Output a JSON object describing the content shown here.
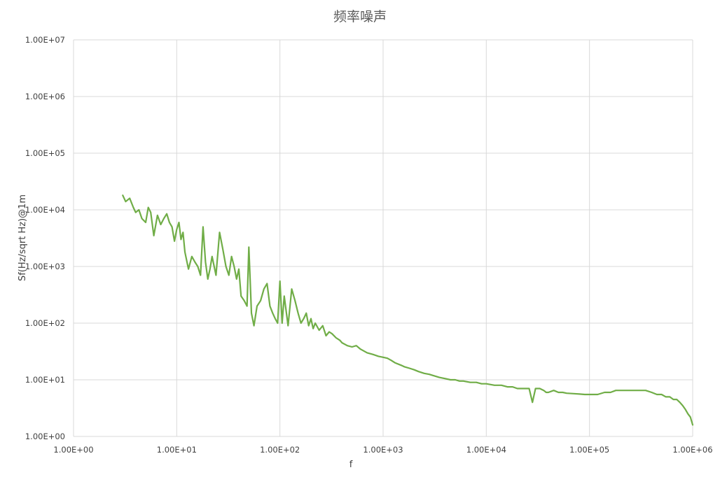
{
  "chart_data": {
    "type": "line",
    "title": "频率噪声",
    "xlabel": "f",
    "ylabel": "Sf(Hz/sqrt Hz)@1m",
    "x_scale": "log",
    "y_scale": "log",
    "xlim": [
      1,
      1000000
    ],
    "ylim": [
      1,
      10000000
    ],
    "x_ticks": [
      {
        "value": 1,
        "label": "1.00E+00"
      },
      {
        "value": 10,
        "label": "1.00E+01"
      },
      {
        "value": 100,
        "label": "1.00E+02"
      },
      {
        "value": 1000,
        "label": "1.00E+03"
      },
      {
        "value": 10000,
        "label": "1.00E+04"
      },
      {
        "value": 100000,
        "label": "1.00E+05"
      },
      {
        "value": 1000000,
        "label": "1.00E+06"
      }
    ],
    "y_ticks": [
      {
        "value": 1,
        "label": "1.00E+00"
      },
      {
        "value": 10,
        "label": "1.00E+01"
      },
      {
        "value": 100,
        "label": "1.00E+02"
      },
      {
        "value": 1000,
        "label": "1.00E+03"
      },
      {
        "value": 10000,
        "label": "1.00E+04"
      },
      {
        "value": 100000,
        "label": "1.00E+05"
      },
      {
        "value": 1000000,
        "label": "1.00E+06"
      },
      {
        "value": 10000000,
        "label": "1.00E+07"
      }
    ],
    "grid": true,
    "legend": "none",
    "series": [
      {
        "color": "#70ad47",
        "x": [
          3,
          3.2,
          3.5,
          3.8,
          4,
          4.3,
          4.6,
          5,
          5.3,
          5.6,
          6,
          6.5,
          7,
          7.5,
          8,
          8.5,
          9,
          9.5,
          10,
          10.5,
          11,
          11.5,
          12,
          13,
          14,
          15,
          16,
          17,
          18,
          19,
          20,
          21,
          22,
          24,
          26,
          28,
          30,
          32,
          34,
          36,
          38,
          40,
          42,
          45,
          48,
          50,
          53,
          56,
          60,
          65,
          70,
          75,
          80,
          85,
          90,
          95,
          100,
          105,
          110,
          120,
          130,
          140,
          150,
          160,
          170,
          180,
          190,
          200,
          210,
          220,
          240,
          260,
          280,
          300,
          320,
          350,
          380,
          400,
          450,
          500,
          550,
          600,
          700,
          800,
          900,
          1000,
          1100,
          1200,
          1300,
          1500,
          1600,
          1800,
          2000,
          2200,
          2500,
          2800,
          3000,
          3500,
          4000,
          4500,
          5000,
          5500,
          6000,
          7000,
          8000,
          9000,
          10000,
          12000,
          14000,
          16000,
          18000,
          20000,
          23000,
          26000,
          28000,
          30000,
          33000,
          36000,
          38000,
          40000,
          45000,
          50000,
          55000,
          60000,
          70000,
          80000,
          90000,
          100000,
          120000,
          140000,
          160000,
          180000,
          200000,
          250000,
          300000,
          350000,
          400000,
          450000,
          500000,
          550000,
          600000,
          650000,
          700000,
          750000,
          800000,
          850000,
          900000,
          950000,
          1000000
        ],
        "y": [
          18000,
          14000,
          16000,
          11000,
          9000,
          10000,
          7000,
          6000,
          11000,
          9000,
          3500,
          8000,
          5500,
          7000,
          8500,
          6000,
          5000,
          2800,
          4500,
          6000,
          3000,
          4000,
          1800,
          900,
          1500,
          1200,
          1000,
          700,
          5000,
          1200,
          600,
          900,
          1500,
          700,
          4000,
          2000,
          1000,
          700,
          1500,
          1000,
          600,
          900,
          300,
          250,
          200,
          2200,
          150,
          90,
          200,
          250,
          400,
          500,
          200,
          150,
          120,
          100,
          550,
          100,
          300,
          90,
          400,
          250,
          150,
          100,
          120,
          150,
          90,
          120,
          80,
          100,
          75,
          90,
          60,
          70,
          65,
          55,
          50,
          45,
          40,
          38,
          40,
          35,
          30,
          28,
          26,
          25,
          24,
          22,
          20,
          18,
          17,
          16,
          15,
          14,
          13,
          12.5,
          12,
          11,
          10.5,
          10,
          10,
          9.5,
          9.5,
          9,
          9,
          8.5,
          8.5,
          8,
          8,
          7.5,
          7.5,
          7,
          7,
          7,
          4,
          7,
          7,
          6.5,
          6,
          6,
          6.5,
          6,
          6,
          5.8,
          5.7,
          5.6,
          5.5,
          5.5,
          5.5,
          6,
          6,
          6.5,
          6.5,
          6.5,
          6.5,
          6.5,
          6,
          5.5,
          5.5,
          5,
          5,
          4.5,
          4.5,
          4,
          3.5,
          3,
          2.5,
          2.2,
          1.6
        ]
      }
    ]
  }
}
